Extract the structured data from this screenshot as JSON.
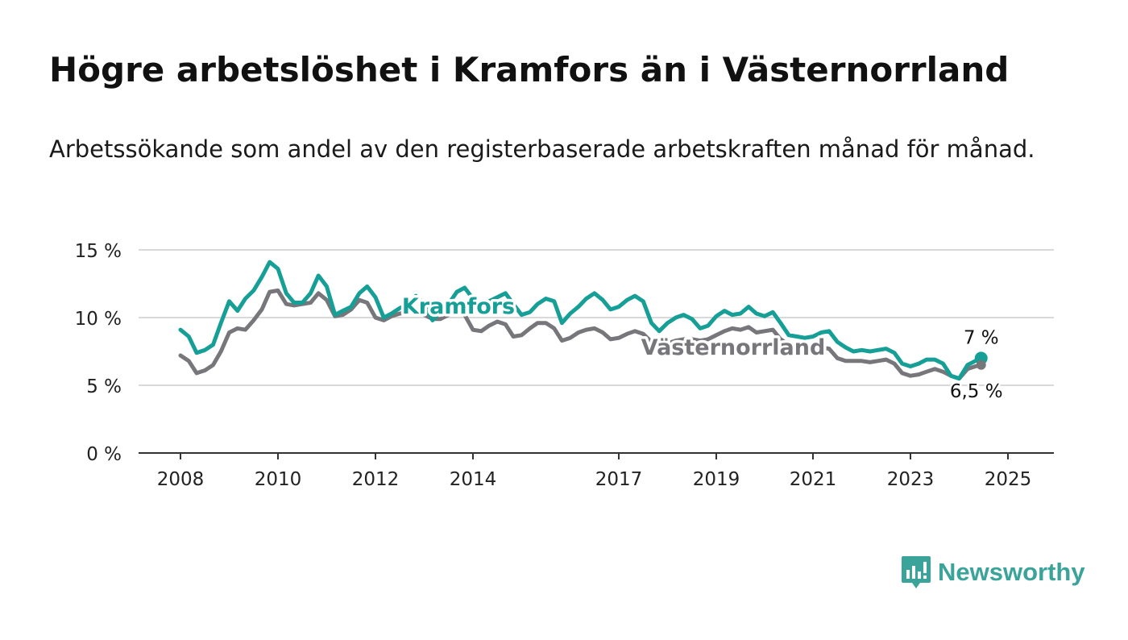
{
  "title": "Högre arbetslöshet i Kramfors än i Västernorrland",
  "subtitle": "Arbetssökande som andel av den registerbaserade arbetskraften månad för månad.",
  "brand": {
    "name": "Newsworthy",
    "icon": "newsworthy-logo-icon",
    "color": "#3aa39a"
  },
  "chart_data": {
    "type": "line",
    "ylim": [
      0,
      15
    ],
    "y_ticks": [
      0,
      5,
      10,
      15
    ],
    "y_tick_labels": [
      "0 %",
      "5 %",
      "10 %",
      "15 %"
    ],
    "x_ticks": [
      2008,
      2010,
      2012,
      2014,
      2017,
      2019,
      2021,
      2023,
      2025
    ],
    "x_tick_labels": [
      "2008",
      "2010",
      "2012",
      "2014",
      "2017",
      "2019",
      "2021",
      "2023",
      "2025"
    ],
    "grid": true,
    "series": [
      {
        "name": "Kramfors",
        "color": "#169f96",
        "end_label": "7 %",
        "points": [
          [
            2008.0,
            9.1
          ],
          [
            2008.17,
            8.6
          ],
          [
            2008.33,
            7.4
          ],
          [
            2008.5,
            7.6
          ],
          [
            2008.67,
            8.0
          ],
          [
            2008.83,
            9.6
          ],
          [
            2009.0,
            11.2
          ],
          [
            2009.17,
            10.5
          ],
          [
            2009.33,
            11.4
          ],
          [
            2009.5,
            12.0
          ],
          [
            2009.67,
            13.0
          ],
          [
            2009.83,
            14.1
          ],
          [
            2010.0,
            13.6
          ],
          [
            2010.17,
            11.8
          ],
          [
            2010.33,
            11.1
          ],
          [
            2010.5,
            11.1
          ],
          [
            2010.67,
            11.8
          ],
          [
            2010.83,
            13.1
          ],
          [
            2011.0,
            12.3
          ],
          [
            2011.17,
            10.2
          ],
          [
            2011.33,
            10.5
          ],
          [
            2011.5,
            10.8
          ],
          [
            2011.67,
            11.8
          ],
          [
            2011.83,
            12.3
          ],
          [
            2012.0,
            11.5
          ],
          [
            2012.17,
            10.0
          ],
          [
            2012.33,
            10.3
          ],
          [
            2012.5,
            10.7
          ],
          [
            2012.67,
            11.0
          ],
          [
            2012.83,
            11.6
          ],
          [
            2013.0,
            11.0
          ],
          [
            2013.17,
            9.8
          ],
          [
            2013.33,
            10.4
          ],
          [
            2013.5,
            11.0
          ],
          [
            2013.67,
            11.9
          ],
          [
            2013.83,
            12.2
          ],
          [
            2014.0,
            11.4
          ],
          [
            2014.17,
            10.8
          ],
          [
            2014.33,
            11.2
          ],
          [
            2014.5,
            11.5
          ],
          [
            2014.67,
            11.8
          ],
          [
            2014.83,
            11.0
          ],
          [
            2015.0,
            10.2
          ],
          [
            2015.17,
            10.4
          ],
          [
            2015.33,
            11.0
          ],
          [
            2015.5,
            11.4
          ],
          [
            2015.67,
            11.2
          ],
          [
            2015.83,
            9.6
          ],
          [
            2016.0,
            10.3
          ],
          [
            2016.17,
            10.8
          ],
          [
            2016.33,
            11.4
          ],
          [
            2016.5,
            11.8
          ],
          [
            2016.67,
            11.3
          ],
          [
            2016.83,
            10.6
          ],
          [
            2017.0,
            10.8
          ],
          [
            2017.17,
            11.3
          ],
          [
            2017.33,
            11.6
          ],
          [
            2017.5,
            11.2
          ],
          [
            2017.67,
            9.6
          ],
          [
            2017.83,
            9.0
          ],
          [
            2018.0,
            9.6
          ],
          [
            2018.17,
            10.0
          ],
          [
            2018.33,
            10.2
          ],
          [
            2018.5,
            9.9
          ],
          [
            2018.67,
            9.2
          ],
          [
            2018.83,
            9.4
          ],
          [
            2019.0,
            10.1
          ],
          [
            2019.17,
            10.5
          ],
          [
            2019.33,
            10.2
          ],
          [
            2019.5,
            10.3
          ],
          [
            2019.67,
            10.8
          ],
          [
            2019.83,
            10.3
          ],
          [
            2020.0,
            10.1
          ],
          [
            2020.17,
            10.4
          ],
          [
            2020.33,
            9.6
          ],
          [
            2020.5,
            8.7
          ],
          [
            2020.67,
            8.6
          ],
          [
            2020.83,
            8.5
          ],
          [
            2021.0,
            8.6
          ],
          [
            2021.17,
            8.9
          ],
          [
            2021.33,
            9.0
          ],
          [
            2021.5,
            8.2
          ],
          [
            2021.67,
            7.8
          ],
          [
            2021.83,
            7.5
          ],
          [
            2022.0,
            7.6
          ],
          [
            2022.17,
            7.5
          ],
          [
            2022.33,
            7.6
          ],
          [
            2022.5,
            7.7
          ],
          [
            2022.67,
            7.4
          ],
          [
            2022.83,
            6.6
          ],
          [
            2023.0,
            6.4
          ],
          [
            2023.17,
            6.6
          ],
          [
            2023.33,
            6.9
          ],
          [
            2023.5,
            6.9
          ],
          [
            2023.67,
            6.6
          ],
          [
            2023.83,
            5.7
          ],
          [
            2024.0,
            5.5
          ],
          [
            2024.17,
            6.5
          ],
          [
            2024.33,
            6.8
          ],
          [
            2024.45,
            7.0
          ]
        ]
      },
      {
        "name": "Västernorrland",
        "color": "#77767b",
        "end_label": "6,5 %",
        "points": [
          [
            2008.0,
            7.2
          ],
          [
            2008.17,
            6.8
          ],
          [
            2008.33,
            5.9
          ],
          [
            2008.5,
            6.1
          ],
          [
            2008.67,
            6.5
          ],
          [
            2008.83,
            7.5
          ],
          [
            2009.0,
            8.9
          ],
          [
            2009.17,
            9.2
          ],
          [
            2009.33,
            9.1
          ],
          [
            2009.5,
            9.8
          ],
          [
            2009.67,
            10.6
          ],
          [
            2009.83,
            11.9
          ],
          [
            2010.0,
            12.0
          ],
          [
            2010.17,
            11.0
          ],
          [
            2010.33,
            10.9
          ],
          [
            2010.5,
            11.0
          ],
          [
            2010.67,
            11.1
          ],
          [
            2010.83,
            11.8
          ],
          [
            2011.0,
            11.3
          ],
          [
            2011.17,
            10.1
          ],
          [
            2011.33,
            10.2
          ],
          [
            2011.5,
            10.6
          ],
          [
            2011.67,
            11.3
          ],
          [
            2011.83,
            11.1
          ],
          [
            2012.0,
            10.0
          ],
          [
            2012.17,
            9.8
          ],
          [
            2012.33,
            10.1
          ],
          [
            2012.5,
            10.3
          ],
          [
            2012.67,
            10.4
          ],
          [
            2012.83,
            10.5
          ],
          [
            2013.0,
            10.2
          ],
          [
            2013.17,
            9.9
          ],
          [
            2013.33,
            9.9
          ],
          [
            2013.5,
            10.2
          ],
          [
            2013.67,
            10.6
          ],
          [
            2013.83,
            10.2
          ],
          [
            2014.0,
            9.1
          ],
          [
            2014.17,
            9.0
          ],
          [
            2014.33,
            9.4
          ],
          [
            2014.5,
            9.7
          ],
          [
            2014.67,
            9.5
          ],
          [
            2014.83,
            8.6
          ],
          [
            2015.0,
            8.7
          ],
          [
            2015.17,
            9.2
          ],
          [
            2015.33,
            9.6
          ],
          [
            2015.5,
            9.6
          ],
          [
            2015.67,
            9.2
          ],
          [
            2015.83,
            8.3
          ],
          [
            2016.0,
            8.5
          ],
          [
            2016.17,
            8.9
          ],
          [
            2016.33,
            9.1
          ],
          [
            2016.5,
            9.2
          ],
          [
            2016.67,
            8.9
          ],
          [
            2016.83,
            8.4
          ],
          [
            2017.0,
            8.5
          ],
          [
            2017.17,
            8.8
          ],
          [
            2017.33,
            9.0
          ],
          [
            2017.5,
            8.8
          ],
          [
            2017.67,
            8.2
          ],
          [
            2017.83,
            7.9
          ],
          [
            2018.0,
            8.1
          ],
          [
            2018.17,
            8.3
          ],
          [
            2018.33,
            8.4
          ],
          [
            2018.5,
            8.4
          ],
          [
            2018.67,
            8.3
          ],
          [
            2018.83,
            8.4
          ],
          [
            2019.0,
            8.7
          ],
          [
            2019.17,
            9.0
          ],
          [
            2019.33,
            9.2
          ],
          [
            2019.5,
            9.1
          ],
          [
            2019.67,
            9.3
          ],
          [
            2019.83,
            8.9
          ],
          [
            2020.0,
            9.0
          ],
          [
            2020.17,
            9.1
          ],
          [
            2020.33,
            8.4
          ],
          [
            2020.5,
            8.0
          ],
          [
            2020.67,
            7.9
          ],
          [
            2020.83,
            7.7
          ],
          [
            2021.0,
            7.7
          ],
          [
            2021.17,
            7.8
          ],
          [
            2021.33,
            7.7
          ],
          [
            2021.5,
            7.0
          ],
          [
            2021.67,
            6.8
          ],
          [
            2021.83,
            6.8
          ],
          [
            2022.0,
            6.8
          ],
          [
            2022.17,
            6.7
          ],
          [
            2022.33,
            6.8
          ],
          [
            2022.5,
            6.9
          ],
          [
            2022.67,
            6.6
          ],
          [
            2022.83,
            5.9
          ],
          [
            2023.0,
            5.7
          ],
          [
            2023.17,
            5.8
          ],
          [
            2023.33,
            6.0
          ],
          [
            2023.5,
            6.2
          ],
          [
            2023.67,
            6.0
          ],
          [
            2023.83,
            5.7
          ],
          [
            2024.0,
            5.5
          ],
          [
            2024.17,
            6.2
          ],
          [
            2024.33,
            6.4
          ],
          [
            2024.45,
            6.5
          ]
        ]
      }
    ],
    "series_labels": [
      {
        "text": "Kramfors",
        "color": "#169f96"
      },
      {
        "text": "Västernorrland",
        "color": "#77767b"
      }
    ]
  }
}
